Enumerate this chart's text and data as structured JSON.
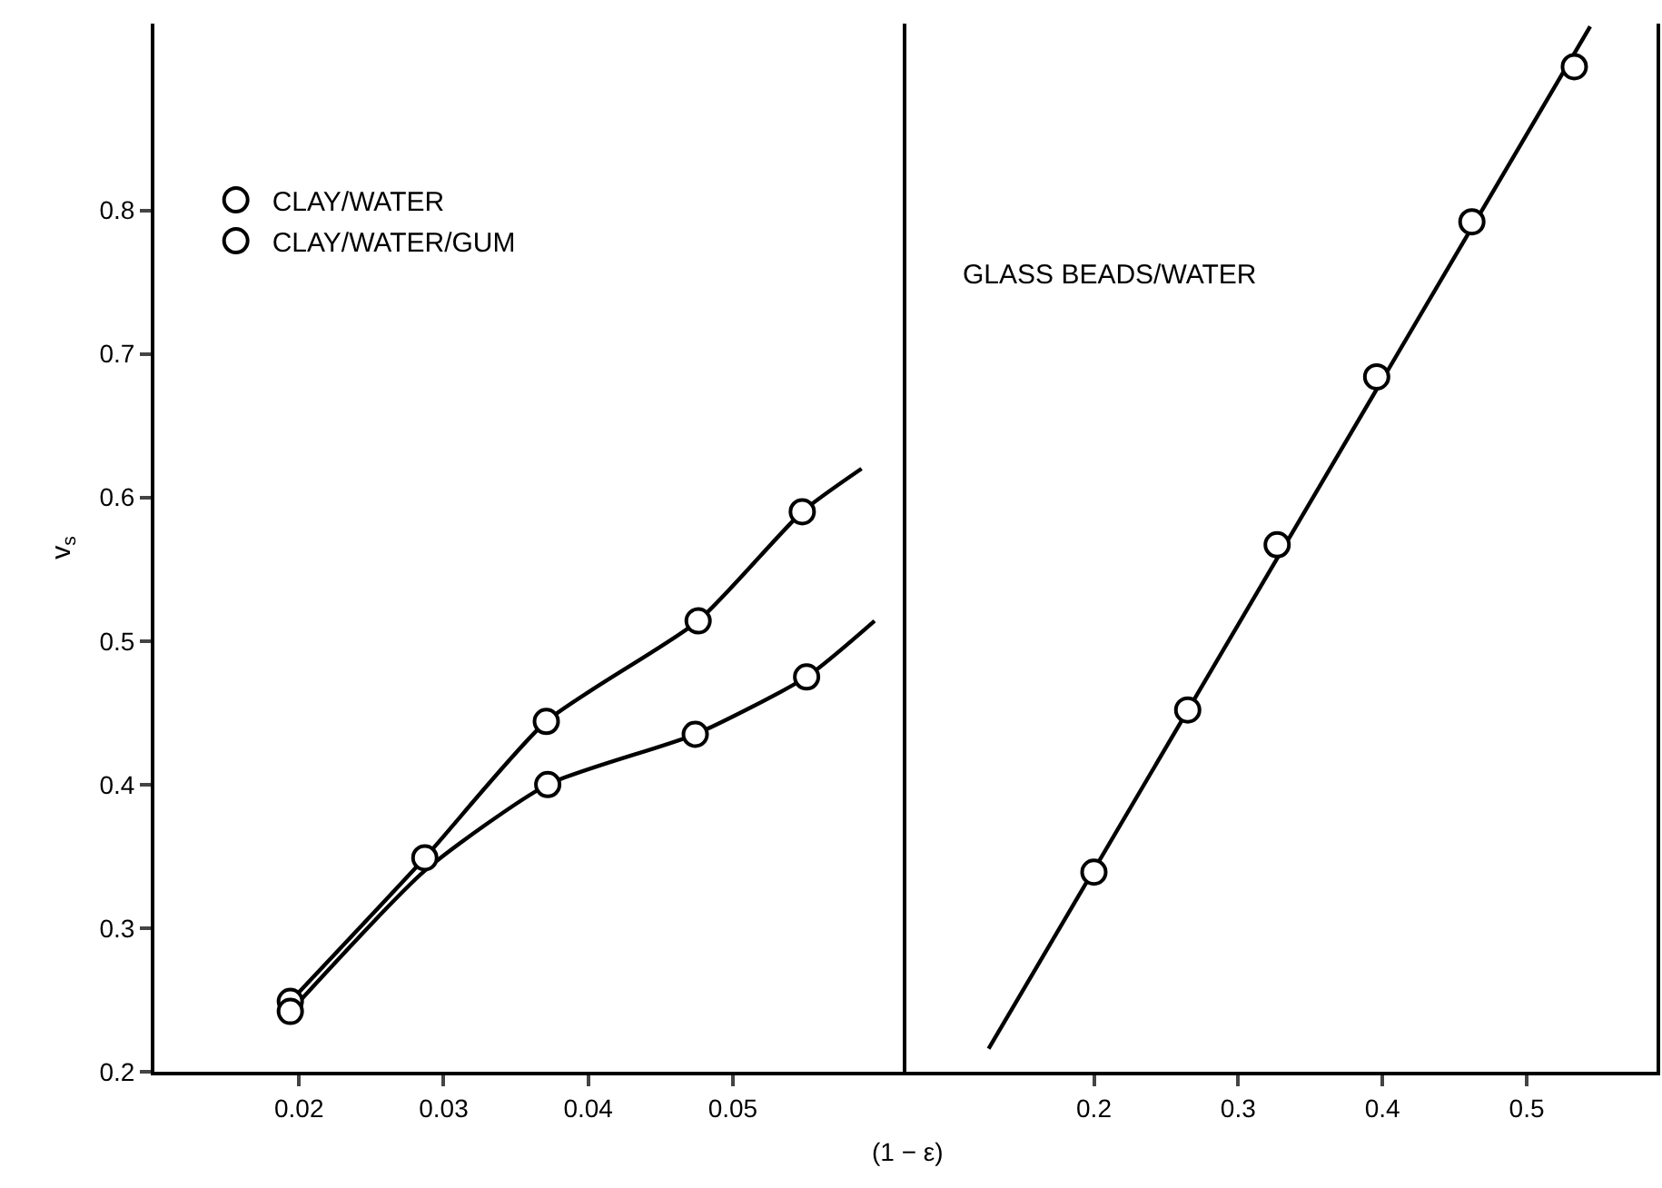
{
  "chart_data": [
    {
      "type": "scatter",
      "xlabel": "(1 − ε)",
      "ylabel": "v$_{s}$",
      "xlim": [
        0.01,
        0.062
      ],
      "xticks": [
        0.02,
        0.03,
        0.04,
        0.05
      ],
      "ylim": [
        0.2,
        0.93
      ],
      "yticks": [
        0.2,
        0.3,
        0.4,
        0.5,
        0.6,
        0.7,
        0.8
      ],
      "grid": false,
      "legend": "top left",
      "marker": "circle",
      "series": [
        {
          "type": "line",
          "color": "#000000",
          "marker": "none",
          "x": [
            0.0194,
            0.0287,
            0.0371,
            0.0476,
            0.0548,
            0.0589
          ],
          "values": [
            0.249,
            0.349,
            0.444,
            0.514,
            0.59,
            0.62
          ]
        },
        {
          "type": "line",
          "color": "#000000",
          "marker": "none",
          "x": [
            0.0194,
            0.0287,
            0.0372,
            0.0474,
            0.0551,
            0.0598
          ],
          "values": [
            0.242,
            0.34,
            0.4,
            0.435,
            0.475,
            0.514
          ]
        },
        {
          "name": "CLAY/WATER",
          "color": "#000000",
          "x": [
            0.0194,
            0.0287,
            0.0371,
            0.0476,
            0.0548
          ],
          "values": [
            0.249,
            0.349,
            0.444,
            0.514,
            0.59
          ]
        },
        {
          "name": "CLAY/WATER/GUM",
          "color": "#000000",
          "x": [
            0.0194,
            0.0372,
            0.0474,
            0.0551
          ],
          "values": [
            0.242,
            0.4,
            0.435,
            0.475
          ]
        }
      ]
    },
    {
      "type": "scatter",
      "xlim": [
        0.07,
        0.59
      ],
      "xticks": [
        0.2,
        0.3,
        0.4,
        0.5
      ],
      "ylim": [
        0.2,
        0.93
      ],
      "tick_labels": "x",
      "grid": false,
      "marker": "circle",
      "annotations": [
        "GLASS BEADS/WATER"
      ],
      "series": [
        {
          "type": "line",
          "color": "#000000",
          "marker": "none",
          "x": [
            0.127,
            0.544
          ],
          "values": [
            0.216,
            0.928
          ]
        },
        {
          "color": "#000000",
          "x": [
            0.2,
            0.265,
            0.327,
            0.396,
            0.462,
            0.533
          ],
          "values": [
            0.339,
            0.452,
            0.567,
            0.684,
            0.792,
            0.9
          ]
        }
      ]
    }
  ]
}
